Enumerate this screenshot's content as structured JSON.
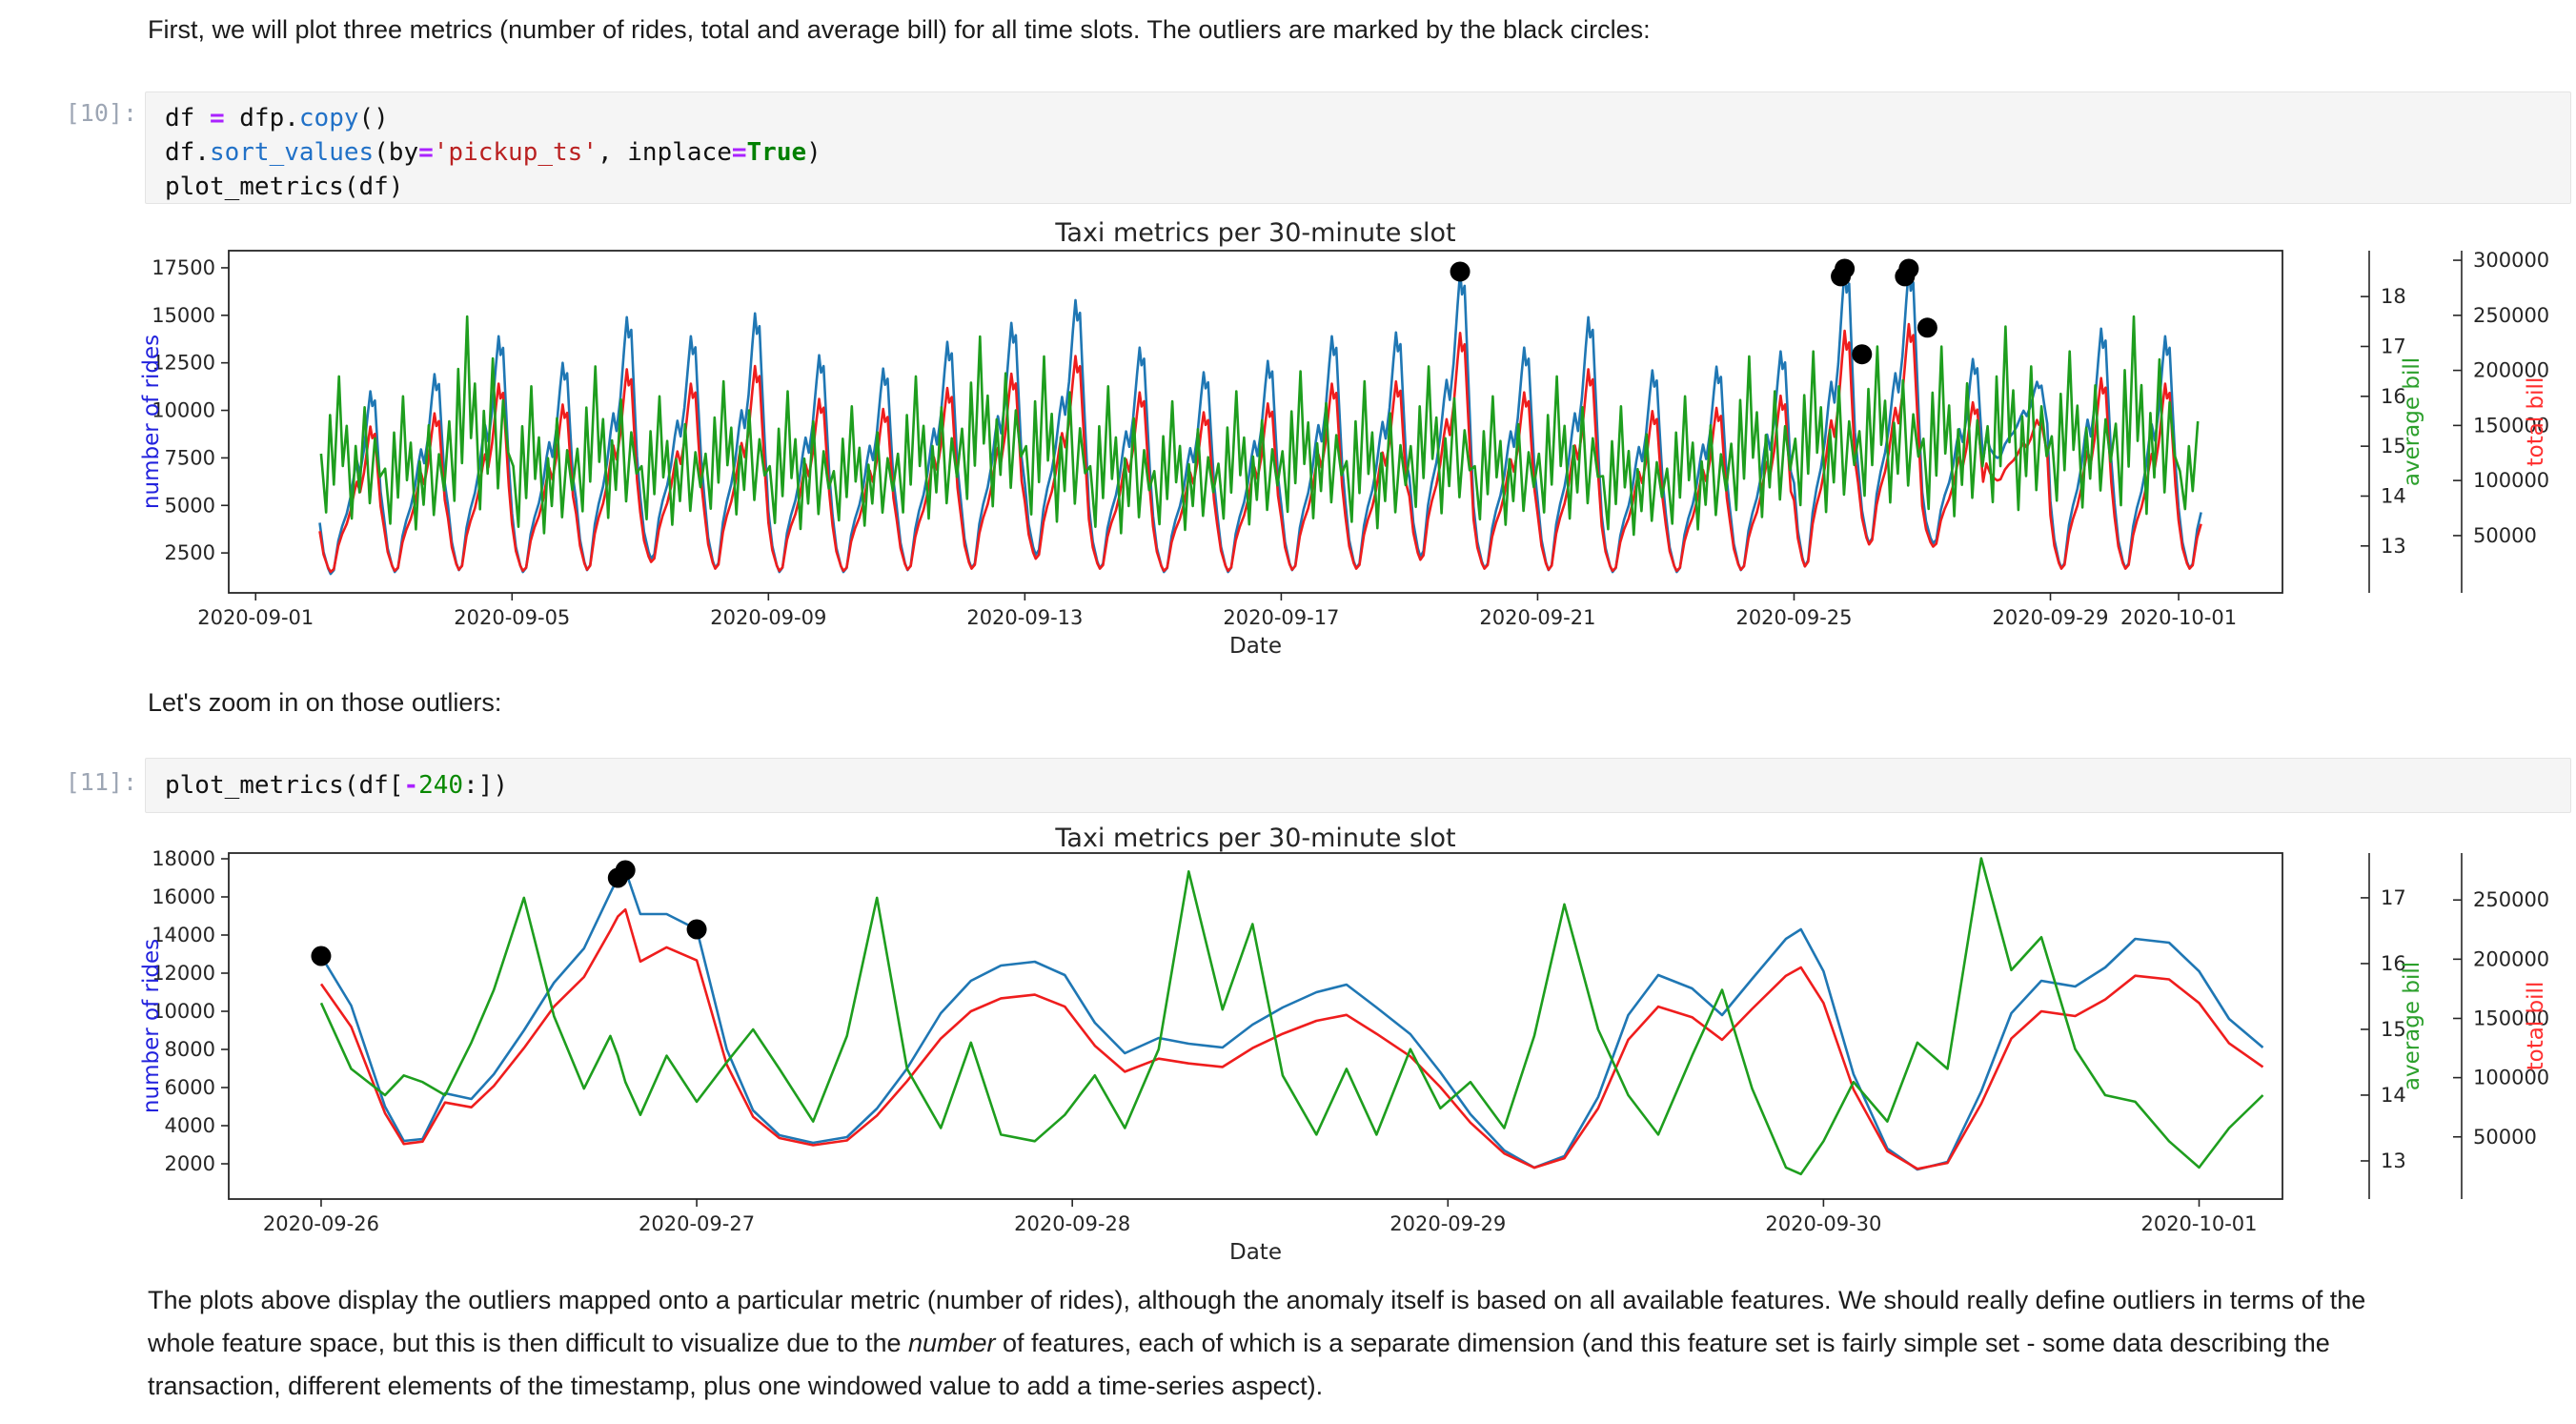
{
  "intro_text": "First, we will plot three metrics (number of rides, total and average bill) for all time slots. The outliers are marked by the black circles:",
  "zoom_note": "Let's zoom in on those outliers:",
  "footer": {
    "line1": "The plots above display the outliers mapped onto a particular metric (number of rides), although the anomaly itself is based on all available features. We should really define outliers in terms of the",
    "line2_pre": "whole feature space, but this is then difficult to visualize due to the ",
    "line2_italic": "number",
    "line2_post": " of features, each of which is a separate dimension (and this feature set is fairly simple set - some data describing the",
    "line3": "transaction, different elements of the timestamp, plus one windowed value to add a time-series aspect)."
  },
  "cells": [
    {
      "prompt": "[10]:",
      "lines": [
        [
          [
            "df ",
            ""
          ],
          [
            "=",
            "op"
          ],
          [
            " dfp.",
            ""
          ],
          [
            "copy",
            "prop"
          ],
          [
            "()",
            ""
          ]
        ],
        [
          [
            "df.",
            ""
          ],
          [
            "sort_values",
            "prop"
          ],
          [
            "(by",
            ""
          ],
          [
            "=",
            "op"
          ],
          [
            "'pickup_ts'",
            "str"
          ],
          [
            ", inplace",
            ""
          ],
          [
            "=",
            "op"
          ],
          [
            "True",
            "kw"
          ],
          [
            ")",
            ""
          ]
        ],
        [
          [
            "plot_metrics(df)",
            ""
          ]
        ]
      ]
    },
    {
      "prompt": "[11]:",
      "lines": [
        [
          [
            "plot_metrics(df[",
            ""
          ],
          [
            "-",
            "op"
          ],
          [
            "240",
            "num"
          ],
          [
            ":])",
            ""
          ]
        ]
      ]
    }
  ],
  "colors": {
    "rides_line": "#1f77b4",
    "avg_line": "#1e9e1e",
    "total_line": "#ef1d1d",
    "rides_label": "#2222dd",
    "avg_label": "#2ca02c",
    "total_label": "#ff2f2f",
    "axis": "#262626",
    "outlier": "#000000"
  },
  "chart_data": [
    {
      "id": "chart1",
      "type": "line",
      "title": "Taxi metrics per 30-minute slot",
      "xlabel": "Date",
      "ylabel_left": "number of rides",
      "ylabel_right1": "average bill",
      "ylabel_right2": "total bill",
      "x_ticks": [
        {
          "d": 0,
          "label": "2020-09-01"
        },
        {
          "d": 4,
          "label": "2020-09-05"
        },
        {
          "d": 8,
          "label": "2020-09-09"
        },
        {
          "d": 12,
          "label": "2020-09-13"
        },
        {
          "d": 16,
          "label": "2020-09-17"
        },
        {
          "d": 20,
          "label": "2020-09-21"
        },
        {
          "d": 24,
          "label": "2020-09-25"
        },
        {
          "d": 28,
          "label": "2020-09-29"
        },
        {
          "d": 30,
          "label": "2020-10-01"
        }
      ],
      "x_range": [
        -0.42,
        31.62
      ],
      "x_data_end": 30.35,
      "rides_ticks": [
        2500,
        5000,
        7500,
        10000,
        12500,
        15000,
        17500
      ],
      "rides_range": [
        400,
        18400
      ],
      "avg_ticks": [
        13,
        14,
        15,
        16,
        17,
        18
      ],
      "avg_range": [
        12.06,
        18.92
      ],
      "total_ticks": [
        50000,
        100000,
        150000,
        200000,
        250000,
        300000
      ],
      "total_range": [
        -2000,
        308700
      ],
      "days_columns": [
        "date",
        "rides_peak",
        "rides_trough",
        "total_peak",
        "total_trough",
        "avg_hi",
        "avg_lo"
      ],
      "days": [
        [
          "2020-09-02",
          11000,
          1400,
          149000,
          17000,
          16.4,
          13.3
        ],
        [
          "2020-09-03",
          11900,
          1500,
          161000,
          18000,
          16.0,
          13.1
        ],
        [
          "2020-09-04",
          13900,
          1600,
          188000,
          19000,
          17.6,
          13.4
        ],
        [
          "2020-09-05",
          12500,
          1500,
          169000,
          18000,
          16.2,
          13.0
        ],
        [
          "2020-09-06",
          14900,
          1600,
          201000,
          19000,
          16.6,
          13.3
        ],
        [
          "2020-09-07",
          13900,
          2200,
          188000,
          26000,
          16.0,
          13.2
        ],
        [
          "2020-09-08",
          15100,
          1700,
          204000,
          20000,
          16.3,
          13.4
        ],
        [
          "2020-09-09",
          12900,
          1500,
          174000,
          18000,
          16.1,
          13.1
        ],
        [
          "2020-09-10",
          12200,
          1500,
          165000,
          18000,
          15.8,
          13.2
        ],
        [
          "2020-09-11",
          13600,
          1600,
          184000,
          19000,
          16.4,
          13.3
        ],
        [
          "2020-09-12",
          14600,
          1700,
          197000,
          20000,
          17.2,
          13.5
        ],
        [
          "2020-09-13",
          15800,
          2400,
          213000,
          29000,
          16.8,
          13.2
        ],
        [
          "2020-09-14",
          13300,
          1700,
          180000,
          20000,
          16.2,
          13.0
        ],
        [
          "2020-09-15",
          12000,
          1500,
          162000,
          18000,
          15.9,
          13.1
        ],
        [
          "2020-09-16",
          12600,
          1500,
          170000,
          18000,
          16.1,
          13.2
        ],
        [
          "2020-09-17",
          13900,
          1600,
          188000,
          19000,
          16.5,
          13.3
        ],
        [
          "2020-09-18",
          14100,
          1700,
          190000,
          20000,
          16.3,
          13.1
        ],
        [
          "2020-09-19",
          17300,
          2300,
          234000,
          28000,
          16.6,
          13.4
        ],
        [
          "2020-09-20",
          13300,
          1700,
          180000,
          20000,
          16.0,
          13.2
        ],
        [
          "2020-09-21",
          14900,
          1600,
          201000,
          19000,
          16.4,
          13.3
        ],
        [
          "2020-09-22",
          12100,
          1500,
          163000,
          18000,
          15.8,
          13.0
        ],
        [
          "2020-09-23",
          12300,
          1500,
          166000,
          18000,
          16.0,
          13.1
        ],
        [
          "2020-09-24",
          13100,
          1600,
          177000,
          19000,
          16.8,
          13.3
        ],
        [
          "2020-09-25",
          17450,
          1800,
          236000,
          22000,
          16.9,
          13.4
        ],
        [
          "2020-09-26",
          17450,
          3000,
          242000,
          42000,
          17.0,
          13.6
        ],
        [
          "2020-09-27",
          12700,
          3000,
          171000,
          40000,
          17.0,
          13.3
        ],
        [
          "2020-09-28",
          11500,
          7500,
          155000,
          100000,
          17.4,
          13.4
        ],
        [
          "2020-09-29",
          14300,
          1700,
          193000,
          20000,
          16.9,
          13.5
        ],
        [
          "2020-09-30",
          13900,
          1700,
          188000,
          20000,
          17.6,
          13.3
        ],
        [
          "2020-10-01",
          13000,
          1700,
          176000,
          20000,
          15.5,
          13.5
        ]
      ],
      "profiles": {
        "daily": [
          [
            0,
            0.28
          ],
          [
            0.06,
            0.12
          ],
          [
            0.13,
            0.03
          ],
          [
            0.17,
            0
          ],
          [
            0.22,
            0.02
          ],
          [
            0.29,
            0.18
          ],
          [
            0.35,
            0.26
          ],
          [
            0.42,
            0.33
          ],
          [
            0.48,
            0.42
          ],
          [
            0.54,
            0.55
          ],
          [
            0.58,
            0.62
          ],
          [
            0.63,
            0.55
          ],
          [
            0.69,
            0.68
          ],
          [
            0.75,
            0.88
          ],
          [
            0.79,
            1
          ],
          [
            0.82,
            0.92
          ],
          [
            0.86,
            0.95
          ],
          [
            0.9,
            0.72
          ],
          [
            0.95,
            0.45
          ]
        ],
        "avg": [
          [
            0.02,
            0.5
          ],
          [
            0.1,
            0.12
          ],
          [
            0.16,
            0.75
          ],
          [
            0.22,
            0.3
          ],
          [
            0.3,
            1
          ],
          [
            0.36,
            0.42
          ],
          [
            0.42,
            0.68
          ],
          [
            0.5,
            0.08
          ],
          [
            0.56,
            0.55
          ],
          [
            0.62,
            0.25
          ],
          [
            0.7,
            0.8
          ],
          [
            0.78,
            0.18
          ],
          [
            0.86,
            0.6
          ],
          [
            0.94,
            0.35
          ]
        ]
      },
      "outliers_rides": [
        [
          18.79,
          17300
        ],
        [
          24.73,
          17050
        ],
        [
          24.79,
          17450
        ],
        [
          25.06,
          12950
        ],
        [
          25.73,
          17050
        ],
        [
          25.79,
          17450
        ],
        [
          26.08,
          14350
        ]
      ]
    },
    {
      "id": "chart2",
      "type": "line",
      "title": "Taxi metrics per 30-minute slot",
      "xlabel": "Date",
      "ylabel_left": "number of rides",
      "ylabel_right1": "average bill",
      "ylabel_right2": "total bill",
      "x_ticks": [
        {
          "d": 0,
          "label": "2020-09-26"
        },
        {
          "d": 1,
          "label": "2020-09-27"
        },
        {
          "d": 2,
          "label": "2020-09-28"
        },
        {
          "d": 3,
          "label": "2020-09-29"
        },
        {
          "d": 4,
          "label": "2020-09-30"
        },
        {
          "d": 5,
          "label": "2020-10-01"
        }
      ],
      "x_range": [
        -0.246,
        5.222
      ],
      "rides_ticks": [
        2000,
        4000,
        6000,
        8000,
        10000,
        12000,
        14000,
        16000,
        18000
      ],
      "rides_range": [
        150,
        18300
      ],
      "avg_ticks": [
        13,
        14,
        15,
        16,
        17
      ],
      "avg_range": [
        12.42,
        17.68
      ],
      "total_ticks": [
        50000,
        100000,
        150000,
        200000,
        250000
      ],
      "total_range": [
        -2500,
        289600
      ],
      "x_points": [
        0,
        0.08,
        0.17,
        0.22,
        0.27,
        0.33,
        0.4,
        0.46,
        0.54,
        0.62,
        0.7,
        0.77,
        0.79,
        0.81,
        0.85,
        0.92,
        1.0,
        1.08,
        1.15,
        1.22,
        1.31,
        1.4,
        1.48,
        1.56,
        1.65,
        1.73,
        1.81,
        1.9,
        1.98,
        2.06,
        2.14,
        2.23,
        2.31,
        2.4,
        2.48,
        2.56,
        2.65,
        2.73,
        2.81,
        2.9,
        2.98,
        3.06,
        3.15,
        3.23,
        3.31,
        3.4,
        3.48,
        3.56,
        3.65,
        3.73,
        3.81,
        3.9,
        3.94,
        4.0,
        4.08,
        4.17,
        4.25,
        4.33,
        4.42,
        4.5,
        4.58,
        4.67,
        4.75,
        4.83,
        4.92,
        5.0,
        5.08,
        5.17
      ],
      "series": {
        "rides": [
          12900,
          10300,
          5000,
          3200,
          3300,
          5700,
          5400,
          6700,
          9000,
          11500,
          13300,
          16200,
          17000,
          17400,
          15100,
          15100,
          14300,
          8000,
          4800,
          3500,
          3100,
          3400,
          4900,
          7000,
          9900,
          11600,
          12400,
          12600,
          11900,
          9400,
          7800,
          8600,
          8300,
          8100,
          9300,
          10200,
          11000,
          11400,
          10200,
          8800,
          6800,
          4600,
          2700,
          1800,
          2400,
          5500,
          9800,
          11900,
          11200,
          9800,
          11700,
          13800,
          14300,
          12100,
          6700,
          2800,
          1700,
          2100,
          5800,
          9900,
          11600,
          11300,
          12300,
          13800,
          13600,
          12100,
          9600,
          8100
        ],
        "total": [
          179000,
          143000,
          70000,
          44000,
          46000,
          79000,
          75000,
          93000,
          125000,
          160000,
          185000,
          224000,
          236000,
          242000,
          198000,
          210000,
          199000,
          111000,
          67000,
          49000,
          43000,
          47000,
          68000,
          97000,
          133000,
          156000,
          167000,
          170000,
          160000,
          127000,
          105000,
          116000,
          112000,
          109000,
          125000,
          137000,
          148000,
          153000,
          137000,
          118000,
          92000,
          62000,
          36000,
          24000,
          32000,
          74000,
          132000,
          160000,
          151000,
          132000,
          158000,
          186000,
          193000,
          163000,
          90000,
          38000,
          23000,
          28000,
          78000,
          133000,
          156000,
          152000,
          166000,
          186000,
          183000,
          163000,
          129000,
          109000
        ],
        "avg": [
          15.4,
          14.4,
          14.0,
          14.3,
          14.2,
          14.0,
          14.8,
          15.6,
          17.0,
          15.2,
          14.1,
          14.9,
          14.6,
          14.2,
          13.7,
          14.6,
          13.9,
          14.5,
          15.0,
          14.4,
          13.6,
          14.9,
          17.0,
          14.4,
          13.5,
          14.8,
          13.4,
          13.3,
          13.7,
          14.3,
          13.5,
          14.7,
          17.4,
          15.3,
          16.6,
          14.3,
          13.4,
          14.4,
          13.4,
          14.7,
          13.8,
          14.2,
          13.5,
          14.9,
          16.9,
          15.0,
          14.0,
          13.4,
          14.6,
          15.6,
          14.1,
          12.9,
          12.8,
          13.3,
          14.2,
          13.6,
          14.8,
          14.4,
          17.6,
          15.9,
          16.4,
          14.7,
          14.0,
          13.9,
          13.3,
          12.9,
          13.5,
          14.0
        ]
      },
      "outliers_rides": [
        [
          0.0,
          12900
        ],
        [
          0.79,
          17000
        ],
        [
          0.81,
          17400
        ],
        [
          1.0,
          14300
        ]
      ]
    }
  ]
}
